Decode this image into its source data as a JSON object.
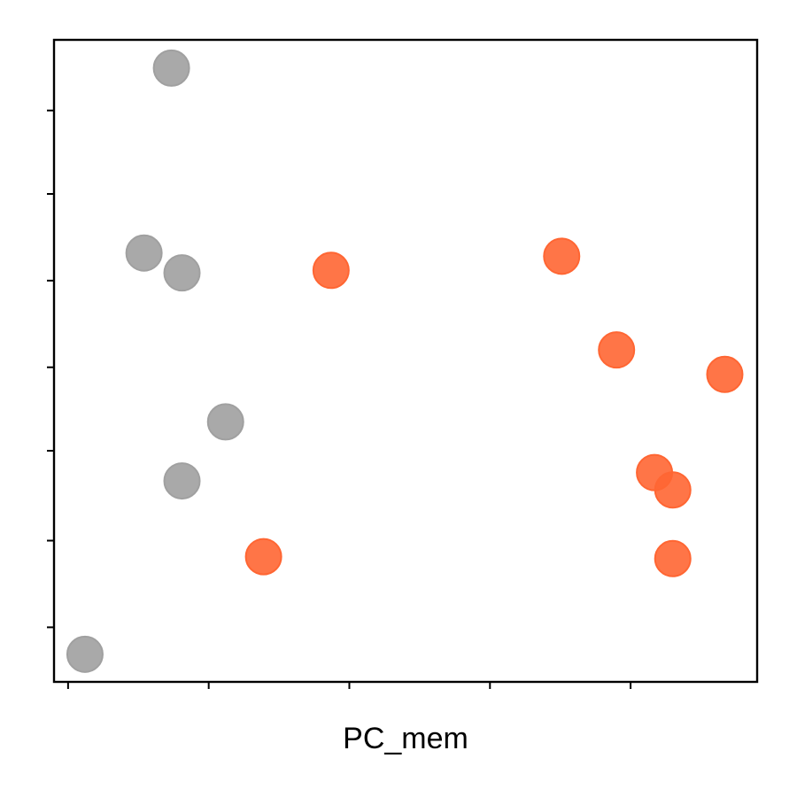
{
  "chart_data": {
    "type": "scatter",
    "title": "",
    "xlabel": "PC_mem",
    "ylabel": "",
    "xlim": [
      0,
      100
    ],
    "ylim": [
      0,
      100
    ],
    "x_ticks": [
      2,
      22,
      42,
      62,
      82
    ],
    "y_ticks": [
      8.5,
      22,
      36,
      49,
      62.5,
      76,
      89
    ],
    "grid": false,
    "legend": "none",
    "series": [
      {
        "color": "#a0a0a0",
        "points": [
          {
            "x": 16.7,
            "y": 95.6
          },
          {
            "x": 12.8,
            "y": 66.8
          },
          {
            "x": 18.2,
            "y": 63.7
          },
          {
            "x": 24.4,
            "y": 40.5
          },
          {
            "x": 18.2,
            "y": 31.3
          },
          {
            "x": 4.4,
            "y": 4.3
          }
        ]
      },
      {
        "color": "#ff6633",
        "points": [
          {
            "x": 39.4,
            "y": 64.1
          },
          {
            "x": 72.2,
            "y": 66.3
          },
          {
            "x": 80.0,
            "y": 51.7
          },
          {
            "x": 95.4,
            "y": 47.9
          },
          {
            "x": 85.4,
            "y": 32.6
          },
          {
            "x": 88.0,
            "y": 29.9
          },
          {
            "x": 29.8,
            "y": 19.5
          },
          {
            "x": 88.0,
            "y": 19.2
          }
        ]
      }
    ]
  }
}
